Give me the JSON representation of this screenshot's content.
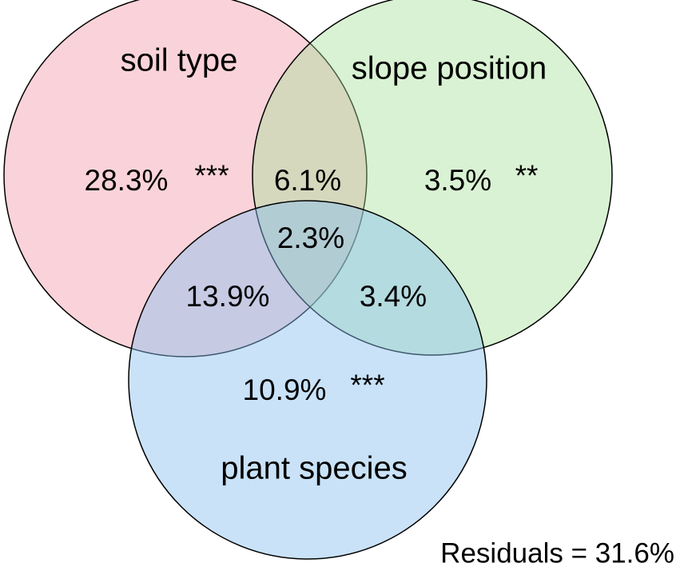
{
  "sets": [
    {
      "label": "soil type"
    },
    {
      "label": "slope position"
    },
    {
      "label": "plant species"
    }
  ],
  "regions": [
    {
      "value": "28.3%",
      "significance": "***"
    },
    {
      "value": "6.1%"
    },
    {
      "value": "3.5%",
      "significance": "**"
    },
    {
      "value": "2.3%"
    },
    {
      "value": "13.9%"
    },
    {
      "value": "3.4%"
    },
    {
      "value": "10.9%",
      "significance": "***"
    }
  ],
  "residuals": "Residuals = 31.6%"
}
